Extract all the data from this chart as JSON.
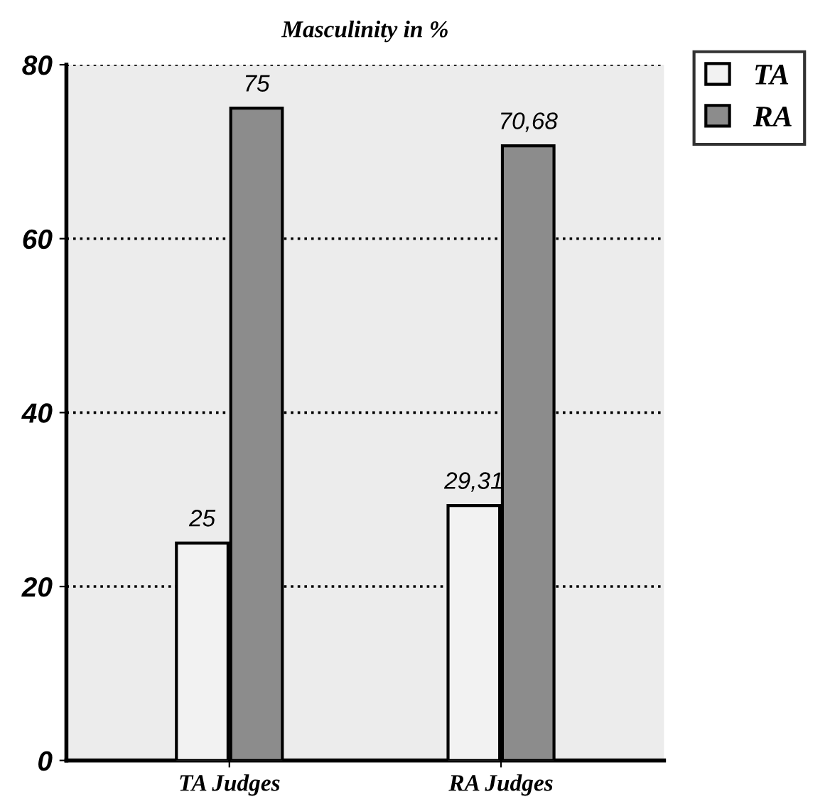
{
  "chart_data": {
    "type": "bar",
    "title": "Masculinity in %",
    "categories": [
      "TA Judges",
      "RA Judges"
    ],
    "series": [
      {
        "name": "TA",
        "color": "#f2f2f2",
        "values": [
          25,
          29.31
        ],
        "value_labels": [
          "25",
          "29,31"
        ]
      },
      {
        "name": "RA",
        "color": "#8c8c8c",
        "values": [
          75,
          70.68
        ],
        "value_labels": [
          "75",
          "70,68"
        ]
      }
    ],
    "ylim": [
      0,
      80
    ],
    "yticks": [
      0,
      20,
      40,
      60,
      80
    ],
    "grid": "y",
    "line_style": "dotted",
    "legend": "top right"
  }
}
